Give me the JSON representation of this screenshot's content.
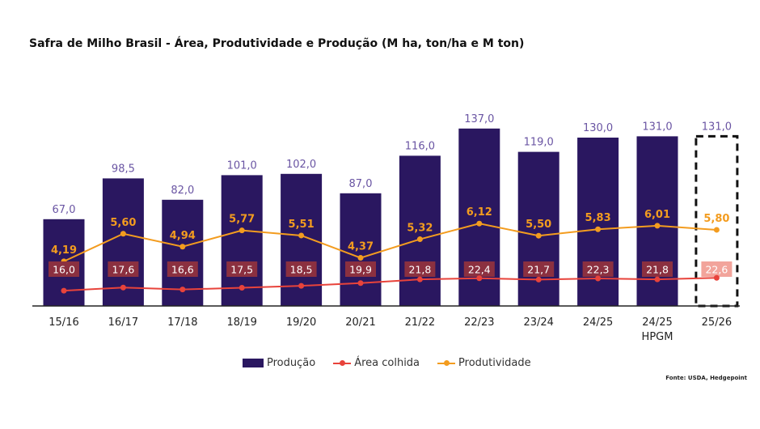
{
  "chart_data": {
    "type": "bar",
    "title": "Safra de Milho Brasil - Área, Produtividade e Produção (M ha, ton/ha e M ton)",
    "categories": [
      "15/16",
      "16/17",
      "17/18",
      "18/19",
      "19/20",
      "20/21",
      "21/22",
      "22/23",
      "23/24",
      "24/25",
      "24/25",
      "25/26"
    ],
    "category_sublabels": [
      "",
      "",
      "",
      "",
      "",
      "",
      "",
      "",
      "",
      "",
      "HPGM",
      ""
    ],
    "series": [
      {
        "name": "Produção",
        "type": "bar",
        "color": "#2a1760",
        "values": [
          67.0,
          98.5,
          82.0,
          101.0,
          102.0,
          87.0,
          116.0,
          137.0,
          119.0,
          130.0,
          131.0,
          131.0
        ],
        "labels": [
          "67,0",
          "98,5",
          "82,0",
          "101,0",
          "102,0",
          "87,0",
          "116,0",
          "137,0",
          "119,0",
          "130,0",
          "131,0",
          "131,0"
        ],
        "label_color": "#6a55a3"
      },
      {
        "name": "Área colhida",
        "type": "line",
        "color": "#e8433b",
        "values": [
          16.0,
          17.6,
          16.6,
          17.5,
          18.5,
          19.9,
          21.8,
          22.4,
          21.7,
          22.3,
          21.8,
          22.6
        ],
        "labels": [
          "16,0",
          "17,6",
          "16,6",
          "17,5",
          "18,5",
          "19,9",
          "21,8",
          "22,4",
          "21,7",
          "22,3",
          "21,8",
          "22,6"
        ],
        "label_bg": "#8b3040",
        "label_bg_projection": "#f2a49b"
      },
      {
        "name": "Produtividade",
        "type": "line",
        "color": "#f39c1f",
        "values": [
          4.19,
          5.6,
          4.94,
          5.77,
          5.51,
          4.37,
          5.32,
          6.12,
          5.5,
          5.83,
          6.01,
          5.8
        ],
        "labels": [
          "4,19",
          "5,60",
          "4,94",
          "5,77",
          "5,51",
          "4,37",
          "5,32",
          "6,12",
          "5,50",
          "5,83",
          "6,01",
          "5,80"
        ]
      }
    ],
    "highlight_index": 11,
    "grid": false,
    "legend_position": "bottom",
    "source": "Fonte: USDA, Hedgepoint"
  }
}
